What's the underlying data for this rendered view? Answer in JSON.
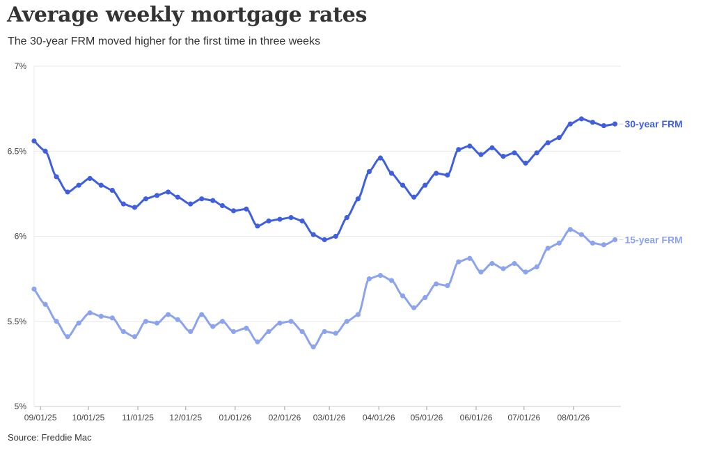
{
  "title": "Average weekly mortgage rates",
  "subtitle": "The 30-year FRM moved higher for the first time in three weeks",
  "source": "Source: Freddie Mac",
  "colors": {
    "frm30": "#3f5fe0",
    "frm15": "#8ca4ef",
    "grid": "#e8e8e8",
    "axis": "#cccccc"
  },
  "chart_data": {
    "type": "line",
    "title": "Average weekly mortgage rates",
    "subtitle": "The 30-year FRM moved higher for the first time in three weeks",
    "xlabel": "",
    "ylabel": "",
    "ylim": [
      5,
      7
    ],
    "y_ticks": [
      5,
      5.5,
      6,
      6.5,
      7
    ],
    "y_tick_labels": [
      "5%",
      "5.5%",
      "6%",
      "6.5%",
      "7%"
    ],
    "x_tick_labels": [
      "09/01/25",
      "10/01/25",
      "11/01/25",
      "12/01/25",
      "01/01/26",
      "02/01/26",
      "03/01/26",
      "04/01/26",
      "05/01/26",
      "06/01/26",
      "07/01/26",
      "08/01/26"
    ],
    "grid": true,
    "legend": "direct labels at line ends",
    "x": [
      "08/28/25",
      "09/04/25",
      "09/11/25",
      "09/18/25",
      "09/25/25",
      "10/02/25",
      "10/09/25",
      "10/16/25",
      "10/23/25",
      "10/30/25",
      "11/06/25",
      "11/13/25",
      "11/20/25",
      "11/26/25",
      "12/04/25",
      "12/11/25",
      "12/18/25",
      "12/24/25",
      "12/31/25",
      "01/08/26",
      "01/15/26",
      "01/22/26",
      "01/29/26",
      "02/05/26",
      "02/12/26",
      "02/19/26",
      "02/26/26",
      "03/05/26",
      "03/12/26",
      "03/19/26",
      "03/26/26",
      "04/02/26",
      "04/09/26",
      "04/16/26",
      "04/23/26",
      "04/30/26",
      "05/07/26",
      "05/14/26",
      "05/21/26",
      "05/28/26",
      "06/04/26",
      "06/11/26",
      "06/18/26",
      "06/25/26",
      "07/02/26",
      "07/09/26",
      "07/16/26",
      "07/23/26",
      "07/30/26",
      "08/06/26",
      "08/13/26",
      "08/20/26",
      "08/27/26"
    ],
    "series": [
      {
        "name": "30-year FRM",
        "values": [
          6.56,
          6.5,
          6.35,
          6.26,
          6.3,
          6.34,
          6.3,
          6.27,
          6.19,
          6.17,
          6.22,
          6.24,
          6.26,
          6.23,
          6.19,
          6.22,
          6.21,
          6.18,
          6.15,
          6.16,
          6.06,
          6.09,
          6.1,
          6.11,
          6.09,
          6.01,
          5.98,
          6.0,
          6.11,
          6.22,
          6.38,
          6.46,
          6.37,
          6.3,
          6.23,
          6.3,
          6.37,
          6.36,
          6.51,
          6.53,
          6.48,
          6.52,
          6.47,
          6.49,
          6.43,
          6.49,
          6.55,
          6.58,
          6.66,
          6.69,
          6.67,
          6.65,
          6.66
        ]
      },
      {
        "name": "15-year FRM",
        "values": [
          5.69,
          5.6,
          5.5,
          5.41,
          5.49,
          5.55,
          5.53,
          5.52,
          5.44,
          5.41,
          5.5,
          5.49,
          5.54,
          5.51,
          5.44,
          5.54,
          5.47,
          5.5,
          5.44,
          5.46,
          5.38,
          5.44,
          5.49,
          5.5,
          5.44,
          5.35,
          5.44,
          5.43,
          5.5,
          5.54,
          5.75,
          5.77,
          5.74,
          5.65,
          5.58,
          5.64,
          5.72,
          5.71,
          5.85,
          5.87,
          5.79,
          5.84,
          5.81,
          5.84,
          5.79,
          5.82,
          5.93,
          5.96,
          6.04,
          6.01,
          5.96,
          5.95,
          5.98
        ]
      }
    ]
  }
}
